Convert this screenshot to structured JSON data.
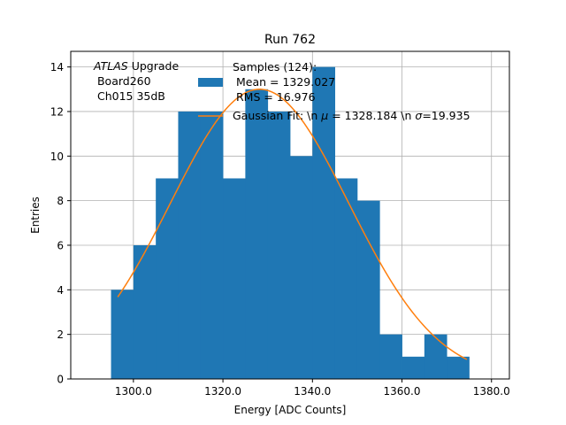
{
  "chart_data": {
    "type": "bar",
    "title": "Run 762",
    "xlabel": "Energy [ADC Counts]",
    "ylabel": "Entries",
    "xlim": [
      1286,
      1384
    ],
    "ylim": [
      0,
      14.7
    ],
    "xticks": [
      1300,
      1320,
      1340,
      1360,
      1380
    ],
    "xtick_labels": [
      "1300.0",
      "1320.0",
      "1340.0",
      "1360.0",
      "1380.0"
    ],
    "yticks": [
      0,
      2,
      4,
      6,
      8,
      10,
      12,
      14
    ],
    "ytick_labels": [
      "0",
      "2",
      "4",
      "6",
      "8",
      "10",
      "12",
      "14"
    ],
    "grid": true,
    "bin_edges": [
      1295,
      1300,
      1305,
      1310,
      1315,
      1320,
      1325,
      1330,
      1335,
      1340,
      1345,
      1350,
      1355,
      1360,
      1365,
      1370,
      1375
    ],
    "counts": [
      4,
      6,
      9,
      12,
      12,
      9,
      13,
      12,
      10,
      14,
      9,
      8,
      2,
      1,
      2,
      1
    ],
    "bar_color": "#1f77b4",
    "fit": {
      "type": "gaussian",
      "mu": 1328.184,
      "sigma": 19.935,
      "amplitude": 13.0,
      "x_range": [
        1296.5,
        1374.5
      ],
      "color": "#ff7f0e"
    },
    "annotation": {
      "line1_italic": "ATLAS",
      "line1_rest": " Upgrade",
      "line2": " Board260",
      "line3": " Ch015 35dB"
    },
    "legend": {
      "placement": "top-center",
      "entries": [
        {
          "kind": "patch",
          "lines": [
            "Samples (124):",
            " Mean = 1329.027",
            " RMS = 16.976"
          ]
        },
        {
          "kind": "line",
          "prefix": "Gaussian Fit: \\n ",
          "mu_symbol": "μ",
          "mid": " = 1328.184 \\n ",
          "sigma_symbol": "σ",
          "suffix": "=19.935"
        }
      ]
    }
  }
}
